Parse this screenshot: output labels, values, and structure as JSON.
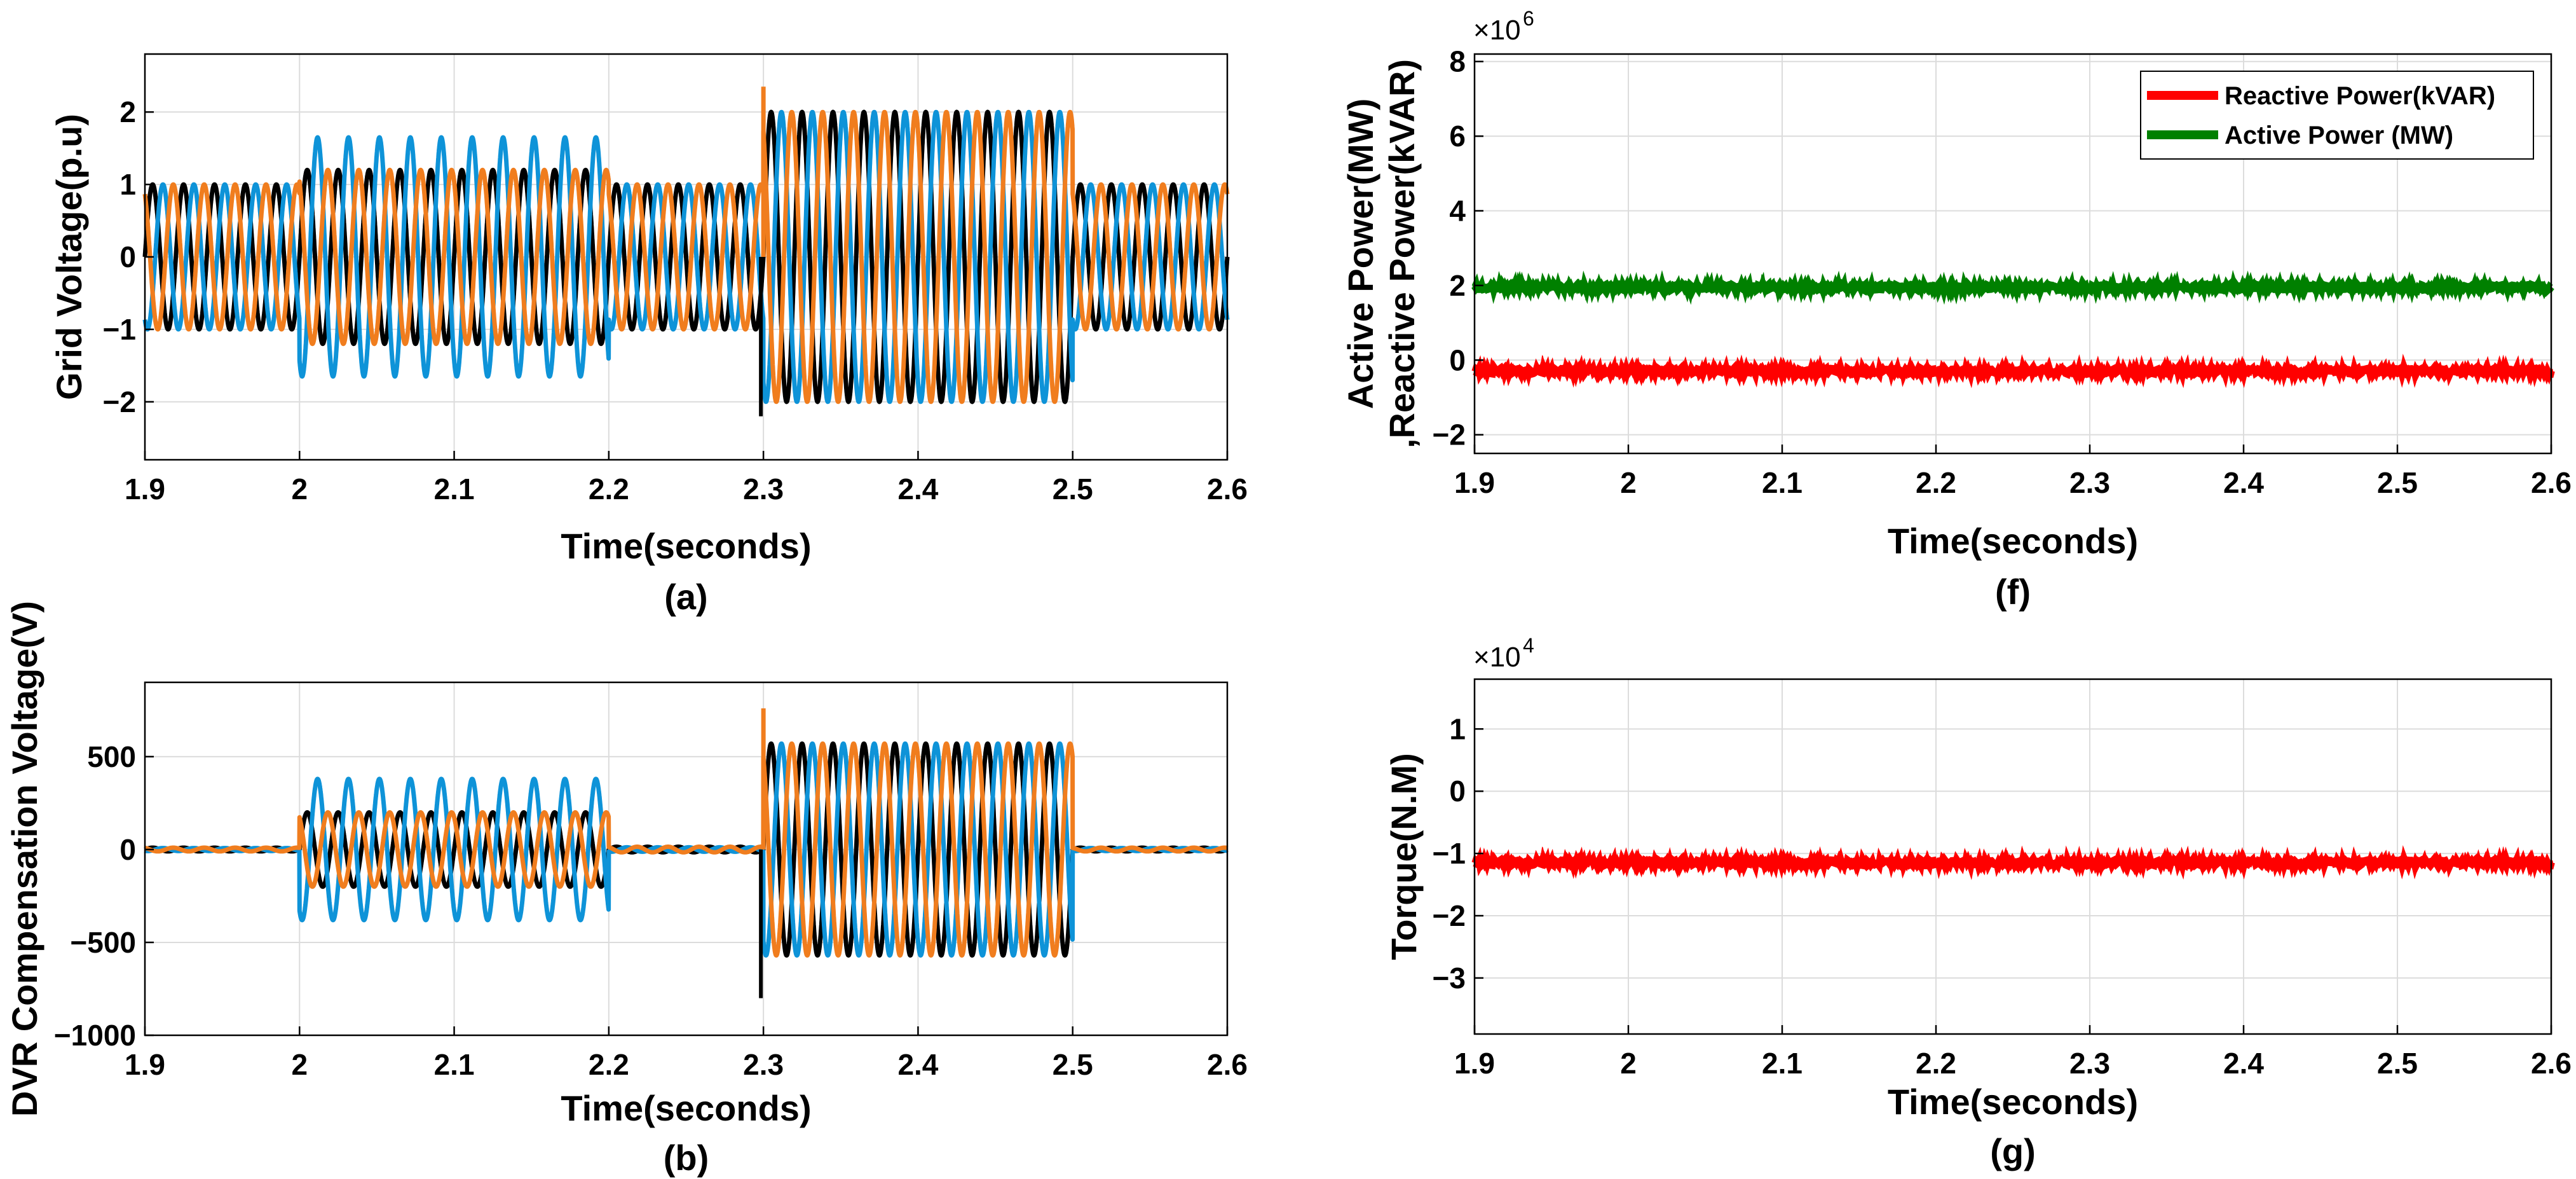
{
  "chart_data": [
    {
      "id": "a",
      "type": "line",
      "caption": "(a)",
      "xlabel": "Time(seconds)",
      "ylabel": "Grid Voltage(p.u)",
      "xlim": [
        1.9,
        2.6
      ],
      "ylim": [
        -2.8,
        2.8
      ],
      "xticks": [
        1.9,
        2,
        2.1,
        2.2,
        2.3,
        2.4,
        2.5,
        2.6
      ],
      "xtick_labels": [
        "1.9",
        "2",
        "2.1",
        "2.2",
        "2.3",
        "2.4",
        "2.5",
        "2.6"
      ],
      "yticks": [
        -2,
        -1,
        0,
        1,
        2
      ],
      "ytick_labels": [
        "−2",
        "−1",
        "0",
        "1",
        "2"
      ],
      "frequency_hz": 50,
      "series": [
        {
          "name": "phase-black",
          "color": "#000000",
          "phase_deg": 0,
          "segments": [
            [
              1.9,
              2.0,
              1.0
            ],
            [
              2.0,
              2.2,
              1.2
            ],
            [
              2.2,
              2.3,
              1.0
            ],
            [
              2.3,
              2.5,
              2.0
            ],
            [
              2.5,
              2.6,
              1.0
            ]
          ]
        },
        {
          "name": "phase-blue",
          "color": "#0e93d8",
          "phase_deg": -120,
          "segments": [
            [
              1.9,
              2.0,
              1.0
            ],
            [
              2.0,
              2.2,
              1.65
            ],
            [
              2.2,
              2.3,
              1.0
            ],
            [
              2.3,
              2.5,
              2.0
            ],
            [
              2.5,
              2.6,
              1.0
            ]
          ]
        },
        {
          "name": "phase-orange",
          "color": "#f07d1e",
          "phase_deg": 120,
          "segments": [
            [
              1.9,
              2.0,
              1.0
            ],
            [
              2.0,
              2.2,
              1.2
            ],
            [
              2.2,
              2.3,
              1.0
            ],
            [
              2.3,
              2.5,
              2.0
            ],
            [
              2.5,
              2.6,
              1.0
            ]
          ]
        }
      ],
      "annotations": {
        "spike_at_2_3_max": 2.35,
        "spike_at_2_3_min": -2.2
      }
    },
    {
      "id": "b",
      "type": "line",
      "caption": "(b)",
      "xlabel": "Time(seconds)",
      "ylabel": "DVR Compensation Voltage(V)",
      "xlim": [
        1.9,
        2.6
      ],
      "ylim": [
        -1000,
        900
      ],
      "xticks": [
        1.9,
        2,
        2.1,
        2.2,
        2.3,
        2.4,
        2.5,
        2.6
      ],
      "xtick_labels": [
        "1.9",
        "2",
        "2.1",
        "2.2",
        "2.3",
        "2.4",
        "2.5",
        "2.6"
      ],
      "yticks": [
        -1000,
        -500,
        0,
        500
      ],
      "ytick_labels": [
        "−1000",
        "−500",
        "0",
        "500"
      ],
      "frequency_hz": 50,
      "series": [
        {
          "name": "phase-black",
          "color": "#000000",
          "phase_deg": 0,
          "segments": [
            [
              1.9,
              2.0,
              10
            ],
            [
              2.0,
              2.2,
              200
            ],
            [
              2.2,
              2.3,
              15
            ],
            [
              2.3,
              2.5,
              570
            ],
            [
              2.5,
              2.6,
              10
            ]
          ]
        },
        {
          "name": "phase-blue",
          "color": "#0e93d8",
          "phase_deg": -120,
          "segments": [
            [
              1.9,
              2.0,
              8
            ],
            [
              2.0,
              2.2,
              380
            ],
            [
              2.2,
              2.3,
              12
            ],
            [
              2.3,
              2.5,
              570
            ],
            [
              2.5,
              2.6,
              8
            ]
          ]
        },
        {
          "name": "phase-orange",
          "color": "#f07d1e",
          "phase_deg": 120,
          "segments": [
            [
              1.9,
              2.0,
              10
            ],
            [
              2.0,
              2.2,
              200
            ],
            [
              2.2,
              2.3,
              15
            ],
            [
              2.3,
              2.5,
              570
            ],
            [
              2.5,
              2.6,
              10
            ]
          ]
        }
      ],
      "annotations": {
        "spike_at_2_3_max": 760,
        "spike_at_2_3_min": -800
      }
    },
    {
      "id": "f",
      "type": "line",
      "caption": "(f)",
      "xlabel": "Time(seconds)",
      "ylabel_line1": "Active Power(MW)",
      "ylabel_line2": ",Reactive Power(kVAR)",
      "multiplier_base": "×10",
      "multiplier_exp": "6",
      "xlim": [
        1.9,
        2.6
      ],
      "ylim": [
        -2.5,
        8.2
      ],
      "xticks": [
        1.9,
        2,
        2.1,
        2.2,
        2.3,
        2.4,
        2.5,
        2.6
      ],
      "xtick_labels": [
        "1.9",
        "2",
        "2.1",
        "2.2",
        "2.3",
        "2.4",
        "2.5",
        "2.6"
      ],
      "yticks": [
        -2,
        0,
        2,
        4,
        6,
        8
      ],
      "ytick_labels": [
        "−2",
        "0",
        "2",
        "4",
        "6",
        "8"
      ],
      "legend_position": "top-right",
      "series": [
        {
          "name": "Reactive Power(kVAR)",
          "color": "#ff0000",
          "value": -0.3
        },
        {
          "name": "Active Power (MW)",
          "color": "#008000",
          "value": 1.95
        }
      ]
    },
    {
      "id": "g",
      "type": "line",
      "caption": "(g)",
      "xlabel": "Time(seconds)",
      "ylabel": "Torque(N.M)",
      "multiplier_base": "×10",
      "multiplier_exp": "4",
      "xlim": [
        1.9,
        2.6
      ],
      "ylim": [
        -3.9,
        1.8
      ],
      "xticks": [
        1.9,
        2,
        2.1,
        2.2,
        2.3,
        2.4,
        2.5,
        2.6
      ],
      "xtick_labels": [
        "1.9",
        "2",
        "2.1",
        "2.2",
        "2.3",
        "2.4",
        "2.5",
        "2.6"
      ],
      "yticks": [
        -3,
        -2,
        -1,
        0,
        1
      ],
      "ytick_labels": [
        "−3",
        "−2",
        "−1",
        "0",
        "1"
      ],
      "series": [
        {
          "name": "Torque",
          "color": "#ff0000",
          "value": -1.15
        }
      ]
    }
  ]
}
